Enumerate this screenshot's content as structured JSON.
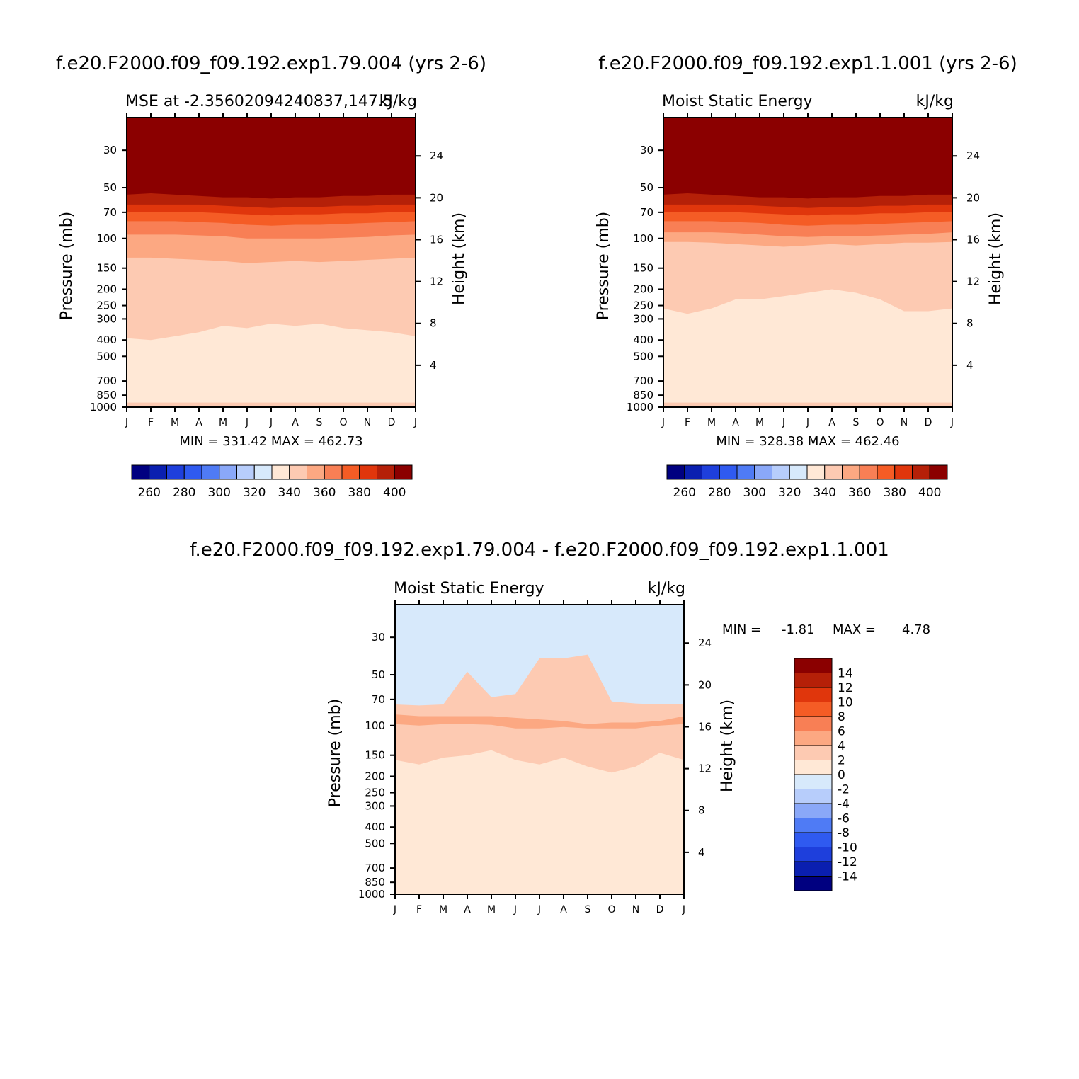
{
  "chart_data": [
    {
      "type": "heatmap",
      "title": "f.e20.F2000.f09_f09.192.exp1.79.004 (yrs 2-6)",
      "left_title": "MSE at -2.35602094240837,147.5",
      "units": "kJ/kg",
      "ylabel": "Pressure (mb)",
      "y2label": "Height (km)",
      "xticks": [
        "J",
        "F",
        "M",
        "A",
        "M",
        "J",
        "J",
        "A",
        "S",
        "O",
        "N",
        "D",
        "J"
      ],
      "yticks": [
        "30",
        "50",
        "70",
        "100",
        "150",
        "200",
        "250",
        "300",
        "400",
        "500",
        "700",
        "850",
        "1000"
      ],
      "y2ticks": [
        "24",
        "20",
        "16",
        "12",
        "8",
        "4"
      ],
      "stats": "MIN = 331.42 MAX = 462.73",
      "min": 331.42,
      "max": 462.73,
      "colorbar_labels": [
        "260",
        "280",
        "300",
        "320",
        "340",
        "360",
        "380",
        "400"
      ],
      "colorbar_colors": [
        "#000080",
        "#0a1fb0",
        "#1e3fdc",
        "#2f5af0",
        "#4f7bf5",
        "#8aa8f8",
        "#b7cdfb",
        "#d7e9fb",
        "#ffe8d6",
        "#fdcab2",
        "#fca882",
        "#f87f55",
        "#f55c25",
        "#e0360c",
        "#b52008",
        "#8b0000"
      ],
      "contour_levels": [
        {
          "level": "400",
          "color": "#8b0000",
          "p": [
            55,
            54,
            55,
            56,
            57,
            57,
            58,
            57,
            57,
            56,
            56,
            55,
            55
          ]
        },
        {
          "level": "390",
          "color": "#b52008",
          "p": [
            63,
            63,
            63,
            63,
            64,
            65,
            66,
            65,
            65,
            64,
            64,
            63,
            63
          ]
        },
        {
          "level": "380",
          "color": "#e0360c",
          "p": [
            70,
            70,
            70,
            70,
            71,
            72,
            73,
            72,
            72,
            71,
            71,
            70,
            70
          ]
        },
        {
          "level": "370",
          "color": "#f55c25",
          "p": [
            79,
            79,
            79,
            80,
            81,
            83,
            84,
            83,
            83,
            82,
            81,
            80,
            79
          ]
        },
        {
          "level": "360",
          "color": "#f87f55",
          "p": [
            95,
            95,
            95,
            96,
            97,
            100,
            100,
            100,
            100,
            99,
            98,
            96,
            95
          ]
        },
        {
          "level": "350",
          "color": "#fca882",
          "p": [
            130,
            130,
            132,
            134,
            136,
            140,
            138,
            136,
            138,
            136,
            134,
            132,
            130
          ]
        },
        {
          "level": "340",
          "color": "#fdcab2",
          "p": [
            390,
            400,
            380,
            360,
            330,
            340,
            320,
            330,
            320,
            340,
            350,
            360,
            380
          ]
        },
        {
          "level": "330",
          "color": "#ffe8d6",
          "p": [
            900,
            910,
            900,
            900,
            890,
            890,
            880,
            880,
            880,
            880,
            890,
            890,
            900
          ]
        }
      ]
    },
    {
      "type": "heatmap",
      "title": "f.e20.F2000.f09_f09.192.exp1.1.001 (yrs 2-6)",
      "left_title": "Moist Static Energy",
      "units": "kJ/kg",
      "ylabel": "Pressure (mb)",
      "y2label": "Height (km)",
      "xticks": [
        "J",
        "F",
        "M",
        "A",
        "M",
        "J",
        "J",
        "A",
        "S",
        "O",
        "N",
        "D",
        "J"
      ],
      "yticks": [
        "30",
        "50",
        "70",
        "100",
        "150",
        "200",
        "250",
        "300",
        "400",
        "500",
        "700",
        "850",
        "1000"
      ],
      "y2ticks": [
        "24",
        "20",
        "16",
        "12",
        "8",
        "4"
      ],
      "stats": "MIN = 328.38 MAX = 462.46",
      "min": 328.38,
      "max": 462.46,
      "colorbar_labels": [
        "260",
        "280",
        "300",
        "320",
        "340",
        "360",
        "380",
        "400"
      ],
      "colorbar_colors": [
        "#000080",
        "#0a1fb0",
        "#1e3fdc",
        "#2f5af0",
        "#4f7bf5",
        "#8aa8f8",
        "#b7cdfb",
        "#d7e9fb",
        "#ffe8d6",
        "#fdcab2",
        "#fca882",
        "#f87f55",
        "#f55c25",
        "#e0360c",
        "#b52008",
        "#8b0000"
      ],
      "contour_levels": [
        {
          "level": "400",
          "color": "#8b0000",
          "p": [
            55,
            54,
            55,
            56,
            57,
            57,
            58,
            57,
            57,
            56,
            56,
            55,
            55
          ]
        },
        {
          "level": "390",
          "color": "#b52008",
          "p": [
            63,
            63,
            63,
            63,
            64,
            65,
            66,
            65,
            65,
            64,
            64,
            63,
            63
          ]
        },
        {
          "level": "380",
          "color": "#e0360c",
          "p": [
            70,
            70,
            70,
            70,
            71,
            72,
            73,
            72,
            72,
            71,
            71,
            70,
            70
          ]
        },
        {
          "level": "370",
          "color": "#f55c25",
          "p": [
            79,
            79,
            79,
            80,
            81,
            83,
            84,
            83,
            83,
            82,
            81,
            80,
            79
          ]
        },
        {
          "level": "360",
          "color": "#f87f55",
          "p": [
            92,
            92,
            92,
            93,
            95,
            97,
            98,
            97,
            97,
            96,
            95,
            94,
            92
          ]
        },
        {
          "level": "350",
          "color": "#fca882",
          "p": [
            105,
            105,
            106,
            108,
            110,
            112,
            110,
            108,
            110,
            108,
            106,
            106,
            105
          ]
        },
        {
          "level": "340",
          "color": "#fdcab2",
          "p": [
            260,
            280,
            260,
            230,
            230,
            220,
            210,
            200,
            210,
            230,
            270,
            270,
            260
          ]
        },
        {
          "level": "330",
          "color": "#ffe8d6",
          "p": [
            920,
            920,
            920,
            920,
            910,
            910,
            900,
            900,
            900,
            900,
            910,
            910,
            920
          ]
        }
      ]
    },
    {
      "type": "heatmap",
      "title": "f.e20.F2000.f09_f09.192.exp1.79.004 - f.e20.F2000.f09_f09.192.exp1.1.001",
      "left_title": "Moist Static Energy",
      "units": "kJ/kg",
      "ylabel": "Pressure (mb)",
      "y2label": "Height (km)",
      "xticks": [
        "J",
        "F",
        "M",
        "A",
        "M",
        "J",
        "J",
        "A",
        "S",
        "O",
        "N",
        "D",
        "J"
      ],
      "yticks": [
        "30",
        "50",
        "70",
        "100",
        "150",
        "200",
        "250",
        "300",
        "400",
        "500",
        "700",
        "850",
        "1000"
      ],
      "y2ticks": [
        "24",
        "20",
        "16",
        "12",
        "8",
        "4"
      ],
      "stats_min_label": "MIN =",
      "stats_min": "-1.81",
      "stats_max_label": "MAX =",
      "stats_max": "4.78",
      "min": -1.81,
      "max": 4.78,
      "colorbar_labels": [
        "14",
        "12",
        "10",
        "8",
        "6",
        "4",
        "2",
        "0",
        "-2",
        "-4",
        "-6",
        "-8",
        "-10",
        "-12",
        "-14"
      ],
      "colorbar_colors": [
        "#8b0000",
        "#b52008",
        "#e0360c",
        "#f55c25",
        "#f87f55",
        "#fca882",
        "#fdcab2",
        "#ffe8d6",
        "#d7e9fb",
        "#b7cdfb",
        "#8aa8f8",
        "#4f7bf5",
        "#2f5af0",
        "#1e3fdc",
        "#0a1fb0",
        "#000080"
      ],
      "contour_levels": [
        {
          "level": "0",
          "color": "#ffe8d6",
          "p": [
            75,
            76,
            75,
            48,
            68,
            65,
            40,
            40,
            38,
            72,
            74,
            75,
            75
          ]
        },
        {
          "level": "2",
          "color": "#fdcab2",
          "p": [
            86,
            88,
            88,
            88,
            88,
            90,
            92,
            94,
            98,
            96,
            96,
            94,
            88
          ]
        },
        {
          "level": "4",
          "color": "#fca882",
          "p": [
            98,
            100,
            98,
            98,
            99,
            104,
            104,
            102,
            104,
            104,
            104,
            100,
            98
          ]
        },
        {
          "level": "2",
          "color": "#fdcab2",
          "p": [
            160,
            170,
            155,
            150,
            140,
            160,
            170,
            155,
            175,
            190,
            175,
            145,
            160
          ]
        },
        {
          "level": "0",
          "color": "#ffe8d6",
          "p": [
            890,
            900,
            900,
            900,
            880,
            890,
            890,
            890,
            890,
            880,
            890,
            880,
            880
          ]
        }
      ]
    }
  ]
}
